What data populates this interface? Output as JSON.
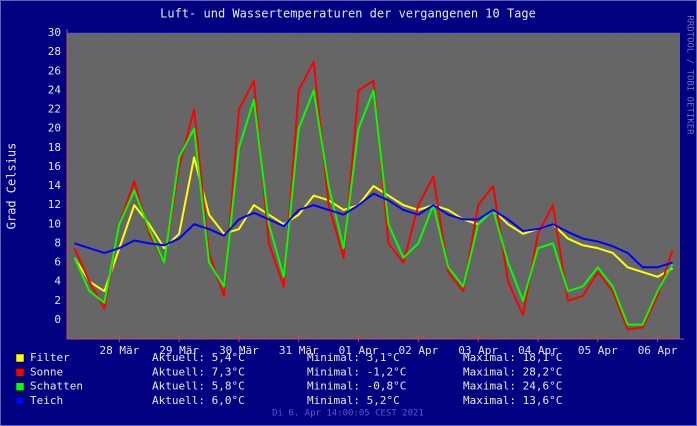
{
  "chart_data": {
    "type": "line",
    "title": "Luft- und Wassertemperaturen der vergangenen 10 Tage",
    "y_label": "Grad Celsius",
    "side_text": "RRDTOOL / TOBI OETIKER",
    "footer": "Di 6. Apr 14:00:05 CEST 2021",
    "grid": true,
    "ylim": [
      -2,
      30
    ],
    "yticks": [
      0,
      2,
      4,
      6,
      8,
      10,
      12,
      14,
      16,
      18,
      20,
      22,
      24,
      26,
      28,
      30
    ],
    "categories": [
      null,
      null,
      null,
      "28 Mär",
      null,
      null,
      null,
      "29 Mär",
      null,
      null,
      null,
      "30 Mär",
      null,
      null,
      null,
      "31 Mär",
      null,
      null,
      null,
      "01 Apr",
      null,
      null,
      null,
      "02 Apr",
      null,
      null,
      null,
      "03 Apr",
      null,
      null,
      null,
      "04 Apr",
      null,
      null,
      null,
      "05 Apr",
      null,
      null,
      null,
      "06 Apr",
      null
    ],
    "series": [
      {
        "name": "Filter",
        "color": "#ffff00",
        "current": "Aktuell: 5,4°C",
        "minimum": "Minimal: 3,1°C",
        "maximum": "Maximal: 18,1°C",
        "values": [
          6.5,
          4,
          3,
          7.5,
          12,
          10,
          7.5,
          9,
          17,
          11,
          9,
          9.5,
          12,
          11,
          10,
          11,
          13,
          12.5,
          11.5,
          12,
          14,
          13,
          12,
          11.5,
          12,
          11.5,
          10.5,
          10,
          11.5,
          10,
          9,
          9.5,
          10,
          8.5,
          7.8,
          7.5,
          7,
          5.5,
          5,
          4.5,
          5.4
        ]
      },
      {
        "name": "Sonne",
        "color": "#ff0000",
        "current": "Aktuell: 7,3°C",
        "minimum": "Minimal: -1,2°C",
        "maximum": "Maximal: 28,2°C",
        "values": [
          7.5,
          4,
          1.2,
          10,
          14.5,
          9,
          6,
          16,
          22,
          7,
          2.5,
          22,
          25,
          8,
          3.5,
          24,
          27,
          12,
          6.5,
          24,
          25,
          8,
          6,
          12,
          15,
          5,
          3,
          12,
          14,
          4,
          0.5,
          9,
          12,
          2,
          2.5,
          5,
          3,
          -1,
          -0.8,
          2.5,
          7.3
        ]
      },
      {
        "name": "Schatten",
        "color": "#00ff00",
        "current": "Aktuell: 5,8°C",
        "minimum": "Minimal: -0,8°C",
        "maximum": "Maximal: 24,6°C",
        "values": [
          6.5,
          3,
          1.8,
          10,
          13.5,
          9.5,
          6,
          17,
          20,
          6,
          3.5,
          18,
          23,
          10,
          4.5,
          20,
          24,
          14,
          7.5,
          20,
          24,
          10,
          6.5,
          8,
          12,
          5.5,
          3.5,
          10,
          11.5,
          6,
          2,
          7.5,
          8,
          3,
          3.5,
          5.5,
          3.5,
          -0.5,
          -0.5,
          3,
          5.8
        ]
      },
      {
        "name": "Teich",
        "color": "#0000ff",
        "current": "Aktuell: 6,0°C",
        "minimum": "Minimal: 5,2°C",
        "maximum": "Maximal: 13,6°C",
        "values": [
          8,
          7.5,
          7,
          7.5,
          8.3,
          8,
          7.8,
          8.5,
          10,
          9.5,
          8.8,
          10.5,
          11.2,
          10.5,
          9.8,
          11.5,
          12,
          11.5,
          11,
          12,
          13.2,
          12.5,
          11.5,
          11,
          12,
          11,
          10.5,
          10.5,
          11.5,
          10.5,
          9.3,
          9.5,
          10,
          9.2,
          8.5,
          8.2,
          7.7,
          7,
          5.5,
          5.5,
          6
        ]
      }
    ]
  }
}
